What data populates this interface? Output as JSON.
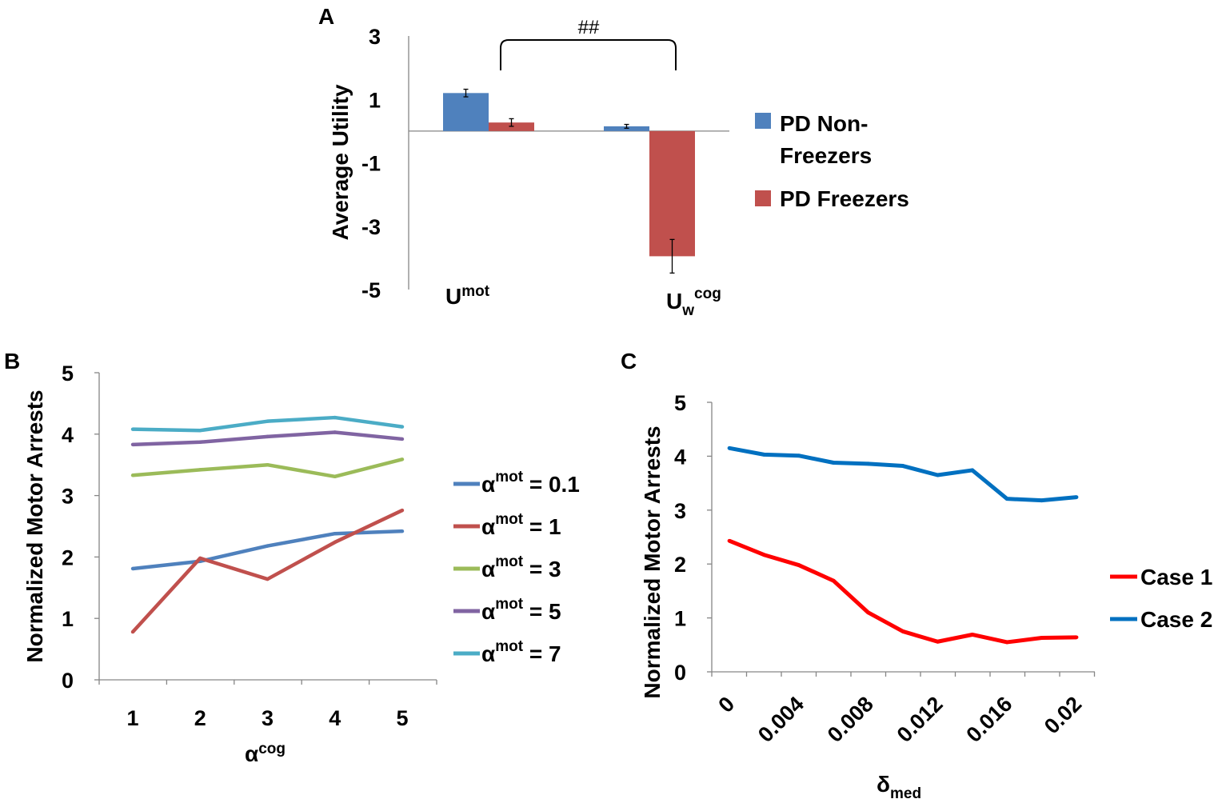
{
  "chart_data": [
    {
      "panel": "A",
      "type": "bar",
      "ylabel": "Average Utility",
      "ylim": [
        -5,
        3
      ],
      "yticks": [
        "3",
        "1",
        "-1",
        "-3",
        "-5"
      ],
      "category_labels": [
        {
          "base": "U",
          "sup": "mot",
          "sub": ""
        },
        {
          "base": "U",
          "sup": "cog",
          "sub": "w"
        }
      ],
      "series": [
        {
          "name": "PD Non-Freezers",
          "legend_lines": [
            "PD Non-",
            "Freezers"
          ],
          "color": "#4f81bd",
          "values": [
            1.2,
            0.15
          ],
          "errors": [
            0.12,
            0.06
          ]
        },
        {
          "name": "PD Freezers",
          "legend_lines": [
            "PD Freezers"
          ],
          "color": "#c0504d",
          "values": [
            0.27,
            -3.95
          ],
          "errors": [
            0.12,
            0.53
          ]
        }
      ],
      "annotation": "##"
    },
    {
      "panel": "B",
      "type": "line",
      "ylabel": "Normalized Motor Arrests",
      "xlabel_base": "α",
      "xlabel_sup": "cog",
      "x": [
        1,
        2,
        3,
        4,
        5
      ],
      "xticks": [
        "1",
        "2",
        "3",
        "4",
        "5"
      ],
      "ylim": [
        0,
        5
      ],
      "yticks": [
        "0",
        "1",
        "2",
        "3",
        "4",
        "5"
      ],
      "series": [
        {
          "label_base": "α",
          "label_sup": "mot",
          "label_val": " =  0.1",
          "color": "#4f81bd",
          "values": [
            1.81,
            1.93,
            2.18,
            2.38,
            2.42
          ]
        },
        {
          "label_base": "α",
          "label_sup": "mot",
          "label_val": " =  1",
          "color": "#c0504d",
          "values": [
            0.78,
            1.98,
            1.64,
            2.24,
            2.76
          ]
        },
        {
          "label_base": "α",
          "label_sup": "mot",
          "label_val": " =  3",
          "color": "#9bbb59",
          "values": [
            3.33,
            3.42,
            3.5,
            3.31,
            3.59
          ]
        },
        {
          "label_base": "α",
          "label_sup": "mot",
          "label_val": " =  5",
          "color": "#8064a2",
          "values": [
            3.83,
            3.87,
            3.96,
            4.03,
            3.92
          ]
        },
        {
          "label_base": "α",
          "label_sup": "mot",
          "label_val": " =  7",
          "color": "#4bacc6",
          "values": [
            4.08,
            4.06,
            4.21,
            4.27,
            4.12
          ]
        }
      ]
    },
    {
      "panel": "C",
      "type": "line",
      "ylabel": "Normalized Motor Arrests",
      "xlabel_base": "δ",
      "xlabel_sub": "med",
      "x": [
        0,
        0.002,
        0.004,
        0.006,
        0.008,
        0.01,
        0.012,
        0.014,
        0.016,
        0.018,
        0.02
      ],
      "xtick_values": [
        0,
        0.004,
        0.008,
        0.012,
        0.016,
        0.02
      ],
      "xticks": [
        "0",
        "0.004",
        "0.008",
        "0.012",
        "0.016",
        "0.02"
      ],
      "ylim": [
        0,
        5
      ],
      "yticks": [
        "0",
        "1",
        "2",
        "3",
        "4",
        "5"
      ],
      "series": [
        {
          "name": "Case 1",
          "color": "#ff0000",
          "values": [
            2.43,
            2.17,
            1.98,
            1.69,
            1.1,
            0.75,
            0.56,
            0.69,
            0.55,
            0.63,
            0.64
          ]
        },
        {
          "name": "Case 2",
          "color": "#0070c0",
          "values": [
            4.15,
            4.03,
            4.01,
            3.88,
            3.86,
            3.82,
            3.65,
            3.74,
            3.21,
            3.18,
            3.24
          ]
        }
      ]
    }
  ]
}
